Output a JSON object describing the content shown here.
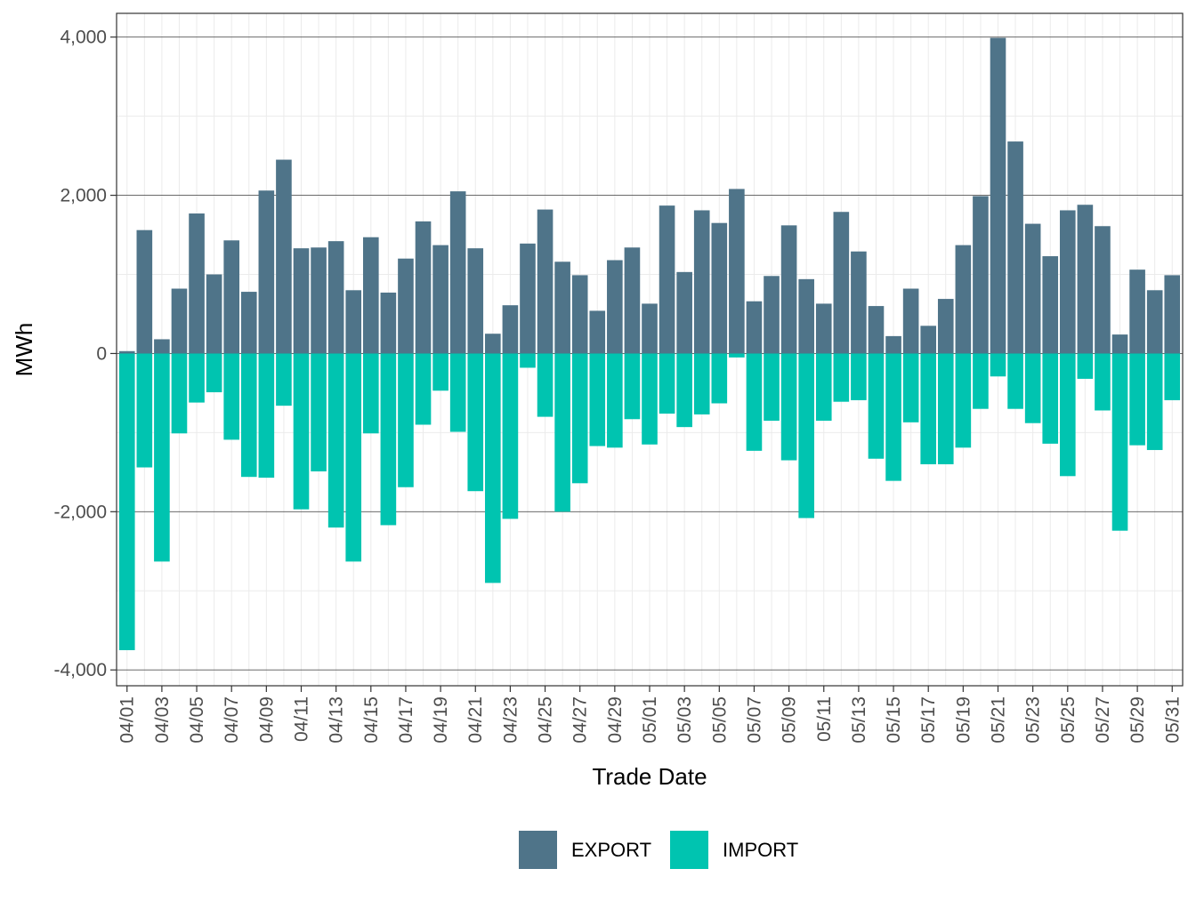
{
  "chart_data": {
    "type": "bar",
    "stacked": true,
    "xlabel": "Trade Date",
    "ylabel": "MWh",
    "ylim": [
      -4000,
      4000
    ],
    "y_ticks": [
      -4000,
      -2000,
      0,
      2000,
      4000
    ],
    "y_tick_labels": [
      "-4,000",
      "-2,000",
      "0",
      "2,000",
      "4,000"
    ],
    "grid": true,
    "legend_position": "bottom",
    "categories": [
      "04/01",
      "04/02",
      "04/03",
      "04/04",
      "04/05",
      "04/06",
      "04/07",
      "04/08",
      "04/09",
      "04/10",
      "04/11",
      "04/12",
      "04/13",
      "04/14",
      "04/15",
      "04/16",
      "04/17",
      "04/18",
      "04/19",
      "04/20",
      "04/21",
      "04/22",
      "04/23",
      "04/24",
      "04/25",
      "04/26",
      "04/27",
      "04/28",
      "04/29",
      "04/30",
      "05/01",
      "05/02",
      "05/03",
      "05/04",
      "05/05",
      "05/06",
      "05/07",
      "05/08",
      "05/09",
      "05/10",
      "05/11",
      "05/12",
      "05/13",
      "05/14",
      "05/15",
      "05/16",
      "05/17",
      "05/18",
      "05/19",
      "05/20",
      "05/21",
      "05/22",
      "05/23",
      "05/24",
      "05/25",
      "05/26",
      "05/27",
      "05/28",
      "05/29",
      "05/30",
      "05/31"
    ],
    "x_tick_labels": [
      "04/01",
      "04/03",
      "04/05",
      "04/07",
      "04/09",
      "04/11",
      "04/13",
      "04/15",
      "04/17",
      "04/19",
      "04/21",
      "04/23",
      "04/25",
      "04/27",
      "04/29",
      "05/01",
      "05/03",
      "05/05",
      "05/07",
      "05/09",
      "05/11",
      "05/13",
      "05/15",
      "05/17",
      "05/19",
      "05/21",
      "05/23",
      "05/25",
      "05/27",
      "05/29",
      "05/31"
    ],
    "series": [
      {
        "name": "EXPORT",
        "color": "#4f7489",
        "values": [
          30,
          1560,
          180,
          820,
          1770,
          1000,
          1430,
          780,
          2060,
          2450,
          1330,
          1340,
          1420,
          800,
          1470,
          770,
          1200,
          1670,
          1370,
          2050,
          1330,
          250,
          610,
          1390,
          1820,
          1160,
          990,
          540,
          1180,
          1340,
          630,
          1870,
          1030,
          1810,
          1650,
          2080,
          660,
          980,
          1620,
          940,
          630,
          1790,
          1290,
          600,
          220,
          820,
          350,
          690,
          1370,
          1990,
          3990,
          2680,
          1640,
          1230,
          1810,
          1880,
          1610,
          240,
          1060,
          800,
          990
        ]
      },
      {
        "name": "IMPORT",
        "color": "#00c4b0",
        "values": [
          -3750,
          -1440,
          -2630,
          -1010,
          -620,
          -490,
          -1090,
          -1560,
          -1570,
          -660,
          -1970,
          -1490,
          -2200,
          -2630,
          -1010,
          -2170,
          -1690,
          -900,
          -470,
          -990,
          -1740,
          -2900,
          -2090,
          -180,
          -800,
          -2000,
          -1640,
          -1170,
          -1190,
          -830,
          -1150,
          -760,
          -930,
          -770,
          -630,
          -50,
          -1230,
          -850,
          -1350,
          -2080,
          -850,
          -610,
          -590,
          -1330,
          -1610,
          -870,
          -1400,
          -1400,
          -1190,
          -700,
          -290,
          -700,
          -880,
          -1140,
          -1550,
          -320,
          -720,
          -2240,
          -1160,
          -1220,
          -590
        ]
      }
    ]
  }
}
